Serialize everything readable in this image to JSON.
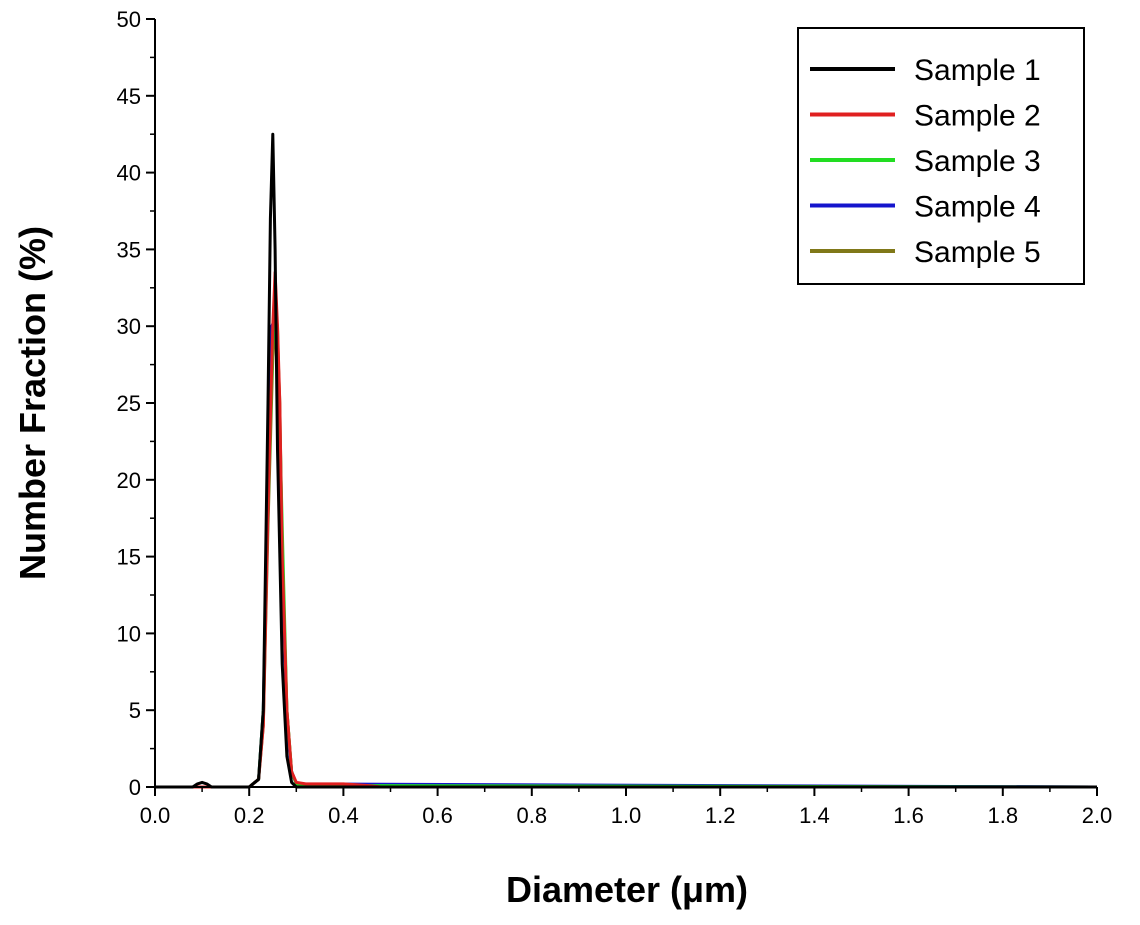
{
  "chart_data": {
    "type": "line",
    "title": "",
    "xlabel": "Diameter (μm)",
    "ylabel": "Number Fraction (%)",
    "xlim": [
      0.0,
      2.0
    ],
    "ylim": [
      0,
      50
    ],
    "x_ticks": [
      "0.0",
      "0.2",
      "0.4",
      "0.6",
      "0.8",
      "1.0",
      "1.2",
      "1.4",
      "1.6",
      "1.8",
      "2.0"
    ],
    "y_ticks": [
      "0",
      "5",
      "10",
      "15",
      "20",
      "25",
      "30",
      "35",
      "40",
      "45",
      "50"
    ],
    "grid": false,
    "legend_position": "top-right",
    "series": [
      {
        "name": "Sample 1",
        "color": "#000000",
        "x": [
          0.0,
          0.08,
          0.09,
          0.1,
          0.11,
          0.12,
          0.2,
          0.22,
          0.23,
          0.24,
          0.245,
          0.25,
          0.255,
          0.26,
          0.27,
          0.28,
          0.29,
          0.3,
          2.0
        ],
        "y": [
          0,
          0,
          0.2,
          0.3,
          0.2,
          0,
          0,
          0.5,
          5,
          25,
          37,
          42.5,
          35,
          22,
          8,
          2,
          0.3,
          0,
          0
        ]
      },
      {
        "name": "Sample 2",
        "color": "#e02020",
        "x": [
          0.0,
          0.2,
          0.22,
          0.23,
          0.24,
          0.25,
          0.255,
          0.26,
          0.265,
          0.27,
          0.28,
          0.29,
          0.3,
          0.32,
          0.4,
          0.45,
          0.48,
          2.0
        ],
        "y": [
          0,
          0,
          0.5,
          4,
          18,
          30,
          33.5,
          30,
          25,
          15,
          5,
          1,
          0.3,
          0.2,
          0.2,
          0.1,
          0,
          0
        ]
      },
      {
        "name": "Sample 3",
        "color": "#22dd22",
        "x": [
          0.0,
          0.2,
          0.22,
          0.23,
          0.24,
          0.25,
          0.255,
          0.26,
          0.27,
          0.28,
          0.29,
          0.3,
          0.35,
          2.0
        ],
        "y": [
          0,
          0,
          0.5,
          5,
          18,
          29,
          31,
          30,
          17,
          5,
          1,
          0.2,
          0.1,
          0
        ]
      },
      {
        "name": "Sample 4",
        "color": "#1515cc",
        "x": [
          0.0,
          0.2,
          0.22,
          0.23,
          0.24,
          0.248,
          0.255,
          0.26,
          0.27,
          0.28,
          0.29,
          0.3,
          2.0
        ],
        "y": [
          0,
          0,
          0.5,
          5,
          20,
          30,
          30.5,
          28,
          15,
          4,
          1,
          0.2,
          0
        ]
      },
      {
        "name": "Sample 5",
        "color": "#807818",
        "x": [
          0.0,
          0.2,
          0.22,
          0.23,
          0.24,
          0.25,
          0.255,
          0.26,
          0.265,
          0.27,
          0.28,
          0.29,
          0.3,
          0.35,
          2.0
        ],
        "y": [
          0,
          0,
          0.5,
          4,
          17,
          28,
          29.8,
          29,
          25,
          15,
          5,
          1,
          0.2,
          0.1,
          0
        ]
      }
    ]
  }
}
